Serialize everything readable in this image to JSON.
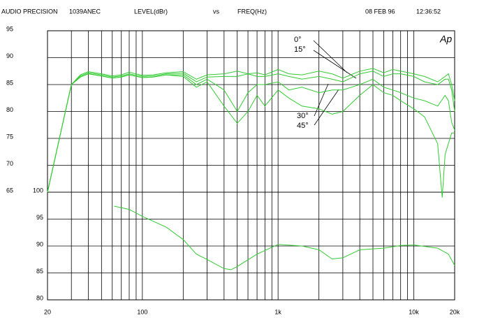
{
  "chart_data": {
    "type": "line",
    "header": {
      "maker": "AUDIO PRECISION",
      "id": "1039ANEC",
      "y_label": "LEVEL(dBr)",
      "vs": "vs",
      "x_label": "FREQ(Hz)",
      "date": "08 FEB 96",
      "time": "12:36:52",
      "logo": "Ap"
    },
    "xscale": "log",
    "xlim": [
      20,
      20000
    ],
    "xticks": [
      20,
      100,
      {
        "value": 1000,
        "label": "1k"
      },
      {
        "value": 10000,
        "label": "10k"
      },
      {
        "value": 20000,
        "label": "20k"
      }
    ],
    "xgrid": [
      30,
      40,
      50,
      60,
      70,
      80,
      90,
      200,
      300,
      400,
      500,
      600,
      700,
      800,
      900,
      2000,
      3000,
      4000,
      5000,
      6000,
      7000,
      8000,
      9000
    ],
    "ylim": [
      45,
      95
    ],
    "yticks": [
      65,
      70,
      75,
      80,
      85,
      90,
      95
    ],
    "y2lim": [
      80,
      130
    ],
    "y2ticks": [
      80,
      85,
      90,
      95,
      100
    ],
    "grid": true,
    "series": [
      {
        "name": "0°",
        "color": "#33cc33",
        "x": [
          20,
          25,
          30,
          35,
          40,
          50,
          60,
          70,
          80,
          100,
          120,
          150,
          200,
          250,
          300,
          400,
          500,
          600,
          700,
          800,
          1000,
          1200,
          1500,
          2000,
          2500,
          3000,
          4000,
          5000,
          6000,
          7000,
          8000,
          10000,
          12000,
          15000,
          17000,
          18000,
          19000,
          20000
        ],
        "values": [
          65,
          76,
          85,
          86.8,
          87.4,
          87,
          86.6,
          86.8,
          87.3,
          86.7,
          86.8,
          87.2,
          87.4,
          86,
          86.8,
          87,
          87.5,
          87,
          87.2,
          86.8,
          87.8,
          87,
          86.8,
          87.5,
          87,
          86.2,
          87.5,
          88,
          87.2,
          87.8,
          87.5,
          87,
          86.5,
          85.5,
          86.5,
          87,
          85,
          82
        ]
      },
      {
        "name": "15°",
        "color": "#33cc33",
        "x": [
          20,
          25,
          30,
          35,
          40,
          50,
          60,
          70,
          80,
          100,
          120,
          150,
          200,
          250,
          300,
          400,
          500,
          600,
          700,
          800,
          1000,
          1200,
          1500,
          2000,
          2500,
          3000,
          4000,
          5000,
          6000,
          7000,
          8000,
          10000,
          12000,
          15000,
          17000,
          18000,
          19000,
          20000
        ],
        "values": [
          65,
          76,
          85,
          86.6,
          87.2,
          86.8,
          86.4,
          86.6,
          87,
          86.5,
          86.6,
          87,
          87.1,
          85.5,
          86.4,
          86.5,
          86.5,
          87,
          86.5,
          86.5,
          87,
          86.5,
          86,
          86.5,
          86,
          85.5,
          87,
          87.5,
          86.5,
          87,
          87,
          86.5,
          85.5,
          85,
          86,
          86,
          84,
          80
        ]
      },
      {
        "name": "30°",
        "color": "#33cc33",
        "x": [
          20,
          25,
          30,
          35,
          40,
          50,
          60,
          70,
          80,
          100,
          120,
          150,
          200,
          250,
          300,
          400,
          500,
          600,
          700,
          800,
          1000,
          1200,
          1500,
          2000,
          2500,
          3000,
          4000,
          5000,
          6000,
          7000,
          8000,
          10000,
          12000,
          15000,
          17000,
          18000,
          19000,
          20000
        ],
        "values": [
          65,
          76,
          85,
          86.4,
          87,
          86.6,
          86.2,
          86.4,
          86.8,
          86.3,
          86.4,
          86.8,
          86.8,
          85,
          86,
          84,
          80,
          83.5,
          85,
          85,
          85.5,
          84,
          84.5,
          83.5,
          84,
          84,
          85,
          86,
          84.5,
          84,
          83.5,
          82.5,
          82,
          81,
          83,
          82,
          78,
          76.5
        ]
      },
      {
        "name": "45°",
        "color": "#33cc33",
        "x": [
          20,
          25,
          30,
          35,
          40,
          50,
          60,
          70,
          80,
          100,
          120,
          150,
          200,
          250,
          300,
          400,
          500,
          600,
          700,
          800,
          1000,
          1200,
          1500,
          2000,
          2500,
          3000,
          4000,
          5000,
          6000,
          7000,
          8000,
          10000,
          12000,
          15000,
          16200,
          17000,
          19000,
          20000
        ],
        "values": [
          65,
          76,
          85,
          86.4,
          87,
          86.6,
          86.2,
          86.4,
          86.8,
          86.3,
          86.4,
          86.8,
          86.5,
          84.5,
          85.5,
          81,
          77.8,
          80,
          83,
          81,
          84,
          82.5,
          81,
          80.5,
          79.5,
          80,
          83,
          85,
          83.5,
          83,
          82,
          80.5,
          79,
          74,
          64,
          72,
          76,
          76
        ]
      },
      {
        "color": "#33cc33",
        "axis": "y2",
        "x": [
          62,
          80,
          100,
          150,
          200,
          250,
          300,
          400,
          450,
          500,
          700,
          1000,
          1500,
          2000,
          2500,
          3000,
          4000,
          6000,
          8000,
          10000,
          15000,
          18000,
          20000
        ],
        "values": [
          97.4,
          96.8,
          95.5,
          93.5,
          91.2,
          88.5,
          87.5,
          85.8,
          85.6,
          86.2,
          88.5,
          90.3,
          90,
          89.3,
          87.6,
          87.8,
          89.3,
          89.6,
          90.1,
          90.2,
          89.6,
          88.5,
          86.4
        ]
      }
    ]
  }
}
